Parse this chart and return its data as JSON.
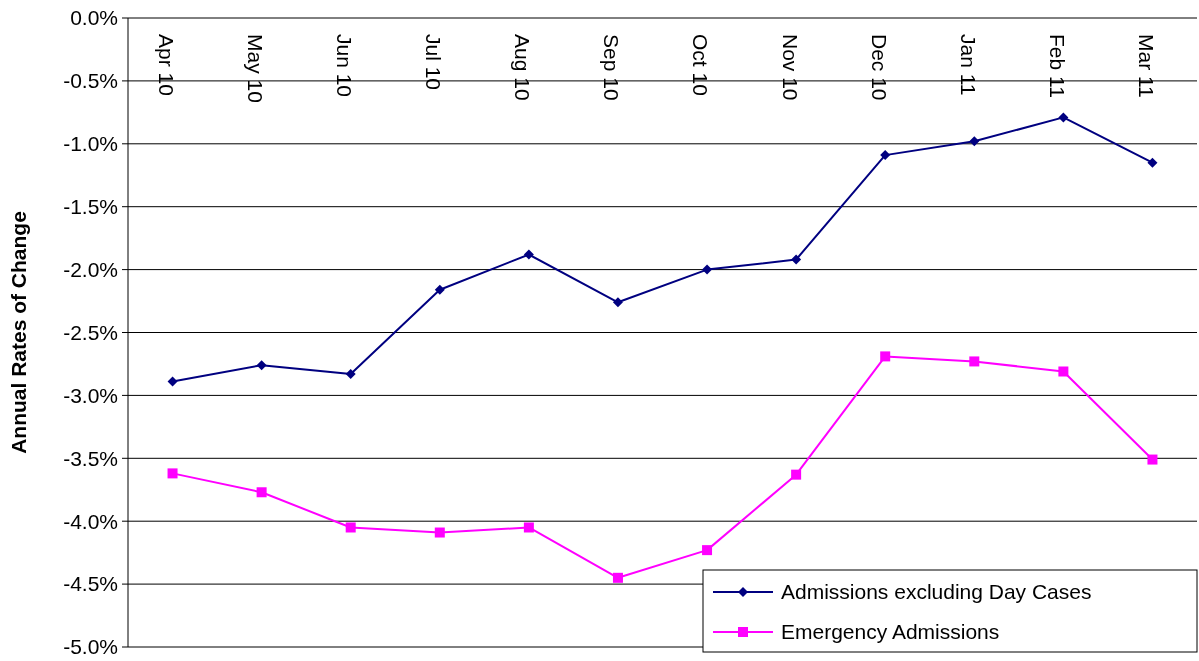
{
  "chart_data": {
    "type": "line",
    "ylabel": "Annual Rates of Change",
    "categories": [
      "Apr 10",
      "May 10",
      "Jun 10",
      "Jul 10",
      "Aug 10",
      "Sep 10",
      "Oct 10",
      "Nov 10",
      "Dec 10",
      "Jan 11",
      "Feb 11",
      "Mar 11"
    ],
    "series": [
      {
        "name": "Admissions excluding Day Cases",
        "color": "#000080",
        "marker": "diamond",
        "values": [
          -2.89,
          -2.76,
          -2.83,
          -2.16,
          -1.88,
          -2.26,
          -2.0,
          -1.92,
          -1.09,
          -0.98,
          -0.79,
          -1.15
        ]
      },
      {
        "name": "Emergency Admissions",
        "color": "#ff00ff",
        "marker": "square",
        "values": [
          -3.62,
          -3.77,
          -4.05,
          -4.09,
          -4.05,
          -4.45,
          -4.23,
          -3.63,
          -2.69,
          -2.73,
          -2.81,
          -3.51
        ]
      }
    ],
    "ylim": [
      -5,
      0
    ],
    "yticks": [
      {
        "value": 0,
        "label": "0.0%"
      },
      {
        "value": -0.5,
        "label": "-0.5%"
      },
      {
        "value": -1,
        "label": "-1.0%"
      },
      {
        "value": -1.5,
        "label": "-1.5%"
      },
      {
        "value": -2,
        "label": "-2.0%"
      },
      {
        "value": -2.5,
        "label": "-2.5%"
      },
      {
        "value": -3,
        "label": "-3.0%"
      },
      {
        "value": -3.5,
        "label": "-3.5%"
      },
      {
        "value": -4,
        "label": "-4.0%"
      },
      {
        "value": -4.5,
        "label": "-4.5%"
      },
      {
        "value": -5,
        "label": "-5.0%"
      }
    ],
    "grid": "y",
    "legend": "bottom right",
    "line_style": "solid"
  }
}
